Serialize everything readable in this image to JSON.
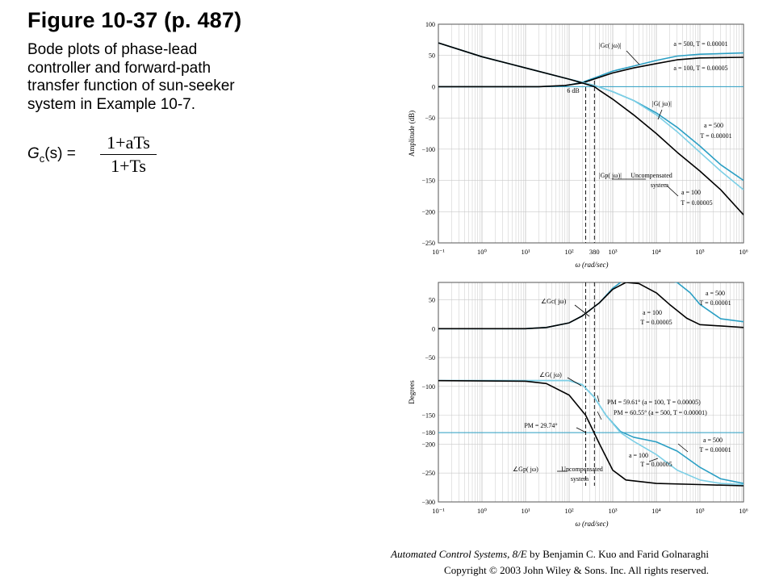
{
  "title": "Figure 10-37  (p. 487)",
  "description_lines": [
    "Bode plots of phase-lead",
    "controller and forward-path",
    "transfer function of sun-seeker",
    "system in Example 10-7."
  ],
  "formula": {
    "lhs_main": "G",
    "lhs_sub": "c",
    "lhs_arg": "(s) =",
    "numerator": "1+aTs",
    "denominator": "1+Ts"
  },
  "credit": {
    "line1_italic": "Automated Control Systems, 8/E",
    "line1_rest": " by Benjamin C. Kuo and Farid Golnaraghi",
    "line2": "Copyright © 2003 John Wiley & Sons. Inc. All rights reserved."
  },
  "colors": {
    "compensated": "#2b9fc4",
    "light": "#7dcfe6",
    "uncompensated": "#000000",
    "grid": "#c9c9c9",
    "axis": "#555555"
  },
  "chart_data": [
    {
      "type": "line",
      "xscale": "log",
      "xlim": [
        0.1,
        1000000
      ],
      "ylim": [
        -250,
        100
      ],
      "ylabel": "Amplitude (dB)",
      "xlabel": "ω   (rad/sec)",
      "xtick_labels": [
        "10⁻¹",
        "10⁰",
        "10¹",
        "10²",
        "380",
        "10³",
        "10⁴",
        "10⁵",
        "10⁶"
      ],
      "yticks": [
        100,
        50,
        0,
        -50,
        -100,
        -150,
        -200,
        -250
      ],
      "series": [
        {
          "name": "|Gc(jω)|  a = 500, T = 0.00001",
          "color": "compensated",
          "points": [
            [
              0.1,
              0
            ],
            [
              20,
              0
            ],
            [
              80,
              1.5
            ],
            [
              200,
              7
            ],
            [
              500,
              17
            ],
            [
              1000,
              25
            ],
            [
              3000,
              33
            ],
            [
              10000,
              42
            ],
            [
              30000,
              49
            ],
            [
              100000,
              52
            ],
            [
              1000000,
              54
            ]
          ]
        },
        {
          "name": "|Gc(jω)|  a = 100, T = 0.00005",
          "color": "uncompensated",
          "points": [
            [
              0.1,
              0
            ],
            [
              20,
              0
            ],
            [
              80,
              2
            ],
            [
              200,
              6
            ],
            [
              500,
              15
            ],
            [
              1000,
              22
            ],
            [
              3000,
              30
            ],
            [
              10000,
              37
            ],
            [
              30000,
              43
            ],
            [
              100000,
              46
            ],
            [
              1000000,
              47
            ]
          ]
        },
        {
          "name": "|G(jω)|  a = 500, T = 0.00001",
          "color": "compensated",
          "points": [
            [
              0.1,
              70
            ],
            [
              1,
              48
            ],
            [
              10,
              30
            ],
            [
              100,
              12
            ],
            [
              200,
              7
            ],
            [
              380,
              2
            ],
            [
              1000,
              -8
            ],
            [
              3000,
              -22
            ],
            [
              10000,
              -42
            ],
            [
              30000,
              -65
            ],
            [
              100000,
              -95
            ],
            [
              300000,
              -125
            ],
            [
              1000000,
              -150
            ]
          ]
        },
        {
          "name": "|G(jω)|  a = 100, T = 0.00005",
          "color": "light",
          "points": [
            [
              0.1,
              70
            ],
            [
              1,
              48
            ],
            [
              10,
              30
            ],
            [
              100,
              12
            ],
            [
              200,
              7
            ],
            [
              380,
              2
            ],
            [
              1000,
              -8
            ],
            [
              3000,
              -22
            ],
            [
              10000,
              -45
            ],
            [
              30000,
              -72
            ],
            [
              100000,
              -105
            ],
            [
              300000,
              -135
            ],
            [
              1000000,
              -165
            ]
          ]
        },
        {
          "name": "|Gp(jω)|  Uncompensated system",
          "color": "uncompensated",
          "points": [
            [
              0.1,
              70
            ],
            [
              1,
              48
            ],
            [
              10,
              30
            ],
            [
              100,
              12
            ],
            [
              200,
              6
            ],
            [
              380,
              0
            ],
            [
              500,
              -6
            ],
            [
              1000,
              -20
            ],
            [
              3000,
              -45
            ],
            [
              10000,
              -75
            ],
            [
              30000,
              -105
            ],
            [
              100000,
              -135
            ],
            [
              300000,
              -165
            ],
            [
              1000000,
              -205
            ]
          ]
        }
      ],
      "annotations": [
        "|Gc( jω)|",
        "a = 500, T = 0.00001",
        "a = 100, T = 0.00005",
        "6 dB",
        "|G( jω)|",
        "a = 500",
        "T = 0.00001",
        "|Gp( jω)|",
        "Uncompensated",
        "system",
        "a = 100",
        "T = 0.00005"
      ],
      "vlines": [
        240,
        380
      ],
      "grid": true
    },
    {
      "type": "line",
      "xscale": "log",
      "xlim": [
        0.1,
        1000000
      ],
      "ylim": [
        -300,
        80
      ],
      "ylabel": "Degrees",
      "xlabel": "ω   (rad/sec)",
      "xtick_labels": [
        "10⁻¹",
        "10⁰",
        "10¹",
        "10²",
        "10³",
        "10⁴",
        "10⁵",
        "10⁶"
      ],
      "yticks": [
        50,
        0,
        -50,
        -100,
        -150,
        -180,
        -200,
        -250,
        -300
      ],
      "series": [
        {
          "name": "∠Gc(jω)  a = 500, T = 0.00001",
          "color": "compensated",
          "points": [
            [
              0.1,
              0
            ],
            [
              10,
              0
            ],
            [
              30,
              2
            ],
            [
              100,
              10
            ],
            [
              200,
              22
            ],
            [
              500,
              45
            ],
            [
              1000,
              70
            ],
            [
              2000,
              87
            ],
            [
              5000,
              88
            ],
            [
              10000,
              87
            ],
            [
              30000,
              80
            ],
            [
              60000,
              62
            ],
            [
              100000,
              42
            ],
            [
              300000,
              17
            ],
            [
              1000000,
              12
            ]
          ]
        },
        {
          "name": "∠Gc(jω)  a = 100, T = 0.00005",
          "color": "uncompensated",
          "points": [
            [
              0.1,
              0
            ],
            [
              10,
              0
            ],
            [
              30,
              2
            ],
            [
              100,
              10
            ],
            [
              200,
              22
            ],
            [
              500,
              45
            ],
            [
              1000,
              68
            ],
            [
              2000,
              80
            ],
            [
              4000,
              78
            ],
            [
              10000,
              62
            ],
            [
              20000,
              42
            ],
            [
              50000,
              18
            ],
            [
              100000,
              7
            ],
            [
              1000000,
              2
            ]
          ]
        },
        {
          "name": "∠G(jω)  a = 500, T = 0.00001",
          "color": "compensated",
          "points": [
            [
              0.1,
              -90
            ],
            [
              30,
              -90
            ],
            [
              100,
              -90
            ],
            [
              200,
              -97
            ],
            [
              380,
              -119
            ],
            [
              700,
              -150
            ],
            [
              1500,
              -178
            ],
            [
              3000,
              -188
            ],
            [
              10000,
              -196
            ],
            [
              30000,
              -212
            ],
            [
              100000,
              -240
            ],
            [
              300000,
              -260
            ],
            [
              1000000,
              -268
            ]
          ]
        },
        {
          "name": "∠G(jω)  a = 100, T = 0.00005",
          "color": "light",
          "points": [
            [
              0.1,
              -90
            ],
            [
              30,
              -90
            ],
            [
              100,
              -90
            ],
            [
              200,
              -97
            ],
            [
              380,
              -119
            ],
            [
              700,
              -150
            ],
            [
              1500,
              -180
            ],
            [
              3000,
              -195
            ],
            [
              10000,
              -218
            ],
            [
              30000,
              -245
            ],
            [
              100000,
              -262
            ],
            [
              300000,
              -268
            ],
            [
              1000000,
              -270
            ]
          ]
        },
        {
          "name": "∠Gp(jω)  Uncompensated system",
          "color": "uncompensated",
          "points": [
            [
              0.1,
              -90
            ],
            [
              10,
              -91
            ],
            [
              30,
              -95
            ],
            [
              100,
              -115
            ],
            [
              240,
              -150
            ],
            [
              500,
              -200
            ],
            [
              1000,
              -245
            ],
            [
              2000,
              -262
            ],
            [
              10000,
              -268
            ],
            [
              100000,
              -270
            ],
            [
              1000000,
              -272
            ]
          ]
        }
      ],
      "annotations": [
        "∠Gc( jω)",
        "a = 500",
        "T = 0.00001",
        "a = 100",
        "T = 0.00005",
        "∠G( jω)",
        "PM = 59.61°  (a = 100, T = 0.00005)",
        "PM = 60.55°  (a = 500, T = 0.00001)",
        "PM = 29.74°",
        "a = 500",
        "T = 0.00001",
        "a = 100",
        "T = 0.00005",
        "∠Gp( jω)",
        "Uncompensated",
        "system"
      ],
      "hlines": [
        -180
      ],
      "grid": true
    }
  ]
}
